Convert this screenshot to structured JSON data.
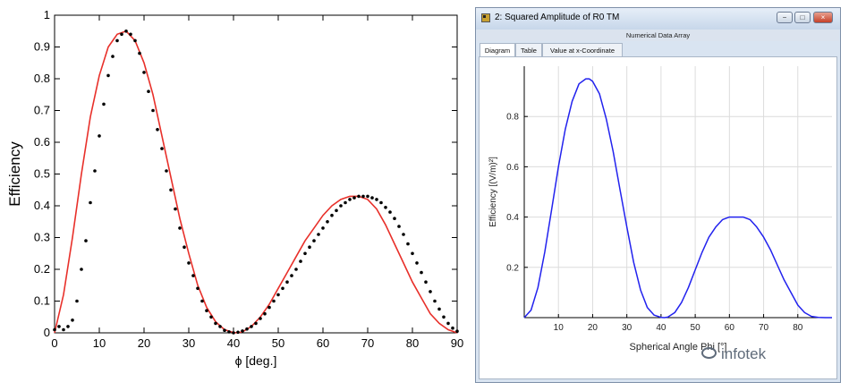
{
  "chart_data": [
    {
      "type": "scatter",
      "xlabel": "ϕ [deg.]",
      "ylabel": "Efficiency",
      "xlim": [
        0,
        90
      ],
      "ylim": [
        0,
        1
      ],
      "xticks": [
        0,
        10,
        20,
        30,
        40,
        50,
        60,
        70,
        80,
        90
      ],
      "yticks": [
        0,
        0.1,
        0.2,
        0.3,
        0.4,
        0.5,
        0.6,
        0.7,
        0.8,
        0.9,
        1
      ],
      "grid": false,
      "series": [
        {
          "mode": "line",
          "color": "#e8302a",
          "x": [
            0,
            2,
            4,
            6,
            8,
            10,
            12,
            14,
            16,
            18,
            20,
            22,
            24,
            26,
            28,
            30,
            32,
            34,
            36,
            38,
            40,
            41,
            42,
            44,
            46,
            48,
            50,
            52,
            54,
            56,
            58,
            60,
            62,
            64,
            66,
            68,
            70,
            72,
            74,
            76,
            78,
            80,
            82,
            84,
            86,
            88,
            90
          ],
          "y": [
            0,
            0.12,
            0.3,
            0.5,
            0.68,
            0.81,
            0.9,
            0.94,
            0.95,
            0.92,
            0.85,
            0.75,
            0.62,
            0.49,
            0.36,
            0.25,
            0.15,
            0.08,
            0.035,
            0.01,
            0.001,
            0,
            0.003,
            0.02,
            0.05,
            0.09,
            0.14,
            0.19,
            0.24,
            0.29,
            0.33,
            0.37,
            0.4,
            0.42,
            0.43,
            0.43,
            0.42,
            0.39,
            0.34,
            0.28,
            0.22,
            0.16,
            0.11,
            0.06,
            0.03,
            0.01,
            0
          ]
        },
        {
          "mode": "markers",
          "color": "#000000",
          "x": [
            0,
            1,
            2,
            3,
            4,
            5,
            6,
            7,
            8,
            9,
            10,
            11,
            12,
            13,
            14,
            15,
            16,
            17,
            18,
            19,
            20,
            21,
            22,
            23,
            24,
            25,
            26,
            27,
            28,
            29,
            30,
            31,
            32,
            33,
            34,
            35,
            36,
            37,
            38,
            39,
            40,
            41,
            42,
            43,
            44,
            45,
            46,
            47,
            48,
            49,
            50,
            51,
            52,
            53,
            54,
            55,
            56,
            57,
            58,
            59,
            60,
            61,
            62,
            63,
            64,
            65,
            66,
            67,
            68,
            69,
            70,
            71,
            72,
            73,
            74,
            75,
            76,
            77,
            78,
            79,
            80,
            81,
            82,
            83,
            84,
            85,
            86,
            87,
            88,
            89,
            90
          ],
          "y": [
            0.01,
            0.02,
            0.01,
            0.02,
            0.04,
            0.1,
            0.2,
            0.29,
            0.41,
            0.51,
            0.62,
            0.72,
            0.81,
            0.87,
            0.92,
            0.94,
            0.95,
            0.94,
            0.92,
            0.88,
            0.82,
            0.76,
            0.7,
            0.64,
            0.58,
            0.51,
            0.45,
            0.39,
            0.33,
            0.27,
            0.22,
            0.18,
            0.14,
            0.1,
            0.07,
            0.05,
            0.03,
            0.02,
            0.008,
            0.003,
            0.0,
            0.002,
            0.006,
            0.012,
            0.02,
            0.03,
            0.045,
            0.06,
            0.08,
            0.1,
            0.12,
            0.14,
            0.16,
            0.18,
            0.2,
            0.225,
            0.25,
            0.27,
            0.29,
            0.31,
            0.33,
            0.35,
            0.37,
            0.385,
            0.4,
            0.41,
            0.42,
            0.425,
            0.43,
            0.43,
            0.43,
            0.425,
            0.42,
            0.41,
            0.395,
            0.38,
            0.36,
            0.335,
            0.31,
            0.28,
            0.25,
            0.22,
            0.19,
            0.16,
            0.13,
            0.1,
            0.075,
            0.05,
            0.03,
            0.015,
            0.005
          ]
        }
      ]
    },
    {
      "type": "line",
      "xlabel": "Spherical Angle Phi [°]",
      "ylabel": "Efficiency [(V/m)²]",
      "xlim": [
        0,
        90
      ],
      "ylim": [
        0,
        1
      ],
      "xticks": [
        10,
        20,
        30,
        40,
        50,
        60,
        70,
        80
      ],
      "yticks": [
        0.2,
        0.4,
        0.6,
        0.8
      ],
      "grid": true,
      "series": [
        {
          "color": "#2222ee",
          "x": [
            0,
            2,
            4,
            6,
            8,
            10,
            12,
            14,
            16,
            18,
            19,
            20,
            22,
            24,
            26,
            28,
            30,
            32,
            34,
            36,
            38,
            40,
            41,
            42,
            44,
            46,
            48,
            50,
            52,
            54,
            56,
            58,
            60,
            62,
            64,
            66,
            68,
            70,
            72,
            74,
            76,
            78,
            80,
            82,
            84,
            86,
            88,
            90
          ],
          "y": [
            0,
            0.03,
            0.12,
            0.26,
            0.43,
            0.6,
            0.75,
            0.86,
            0.93,
            0.95,
            0.95,
            0.94,
            0.89,
            0.79,
            0.66,
            0.51,
            0.36,
            0.22,
            0.11,
            0.04,
            0.01,
            0.001,
            0,
            0.002,
            0.02,
            0.06,
            0.12,
            0.19,
            0.26,
            0.32,
            0.36,
            0.39,
            0.4,
            0.4,
            0.4,
            0.39,
            0.36,
            0.32,
            0.27,
            0.21,
            0.15,
            0.1,
            0.05,
            0.02,
            0.005,
            0.001,
            0,
            0
          ]
        }
      ]
    }
  ],
  "window": {
    "title": "2: Squared Amplitude of R0 TM",
    "subheader": "Numerical Data Array",
    "tabs": [
      "Diagram",
      "Table",
      "Value at x-Coordinate"
    ],
    "buttons": {
      "minimize": "−",
      "maximize": "□",
      "close": "×"
    }
  },
  "watermark": "infotek"
}
